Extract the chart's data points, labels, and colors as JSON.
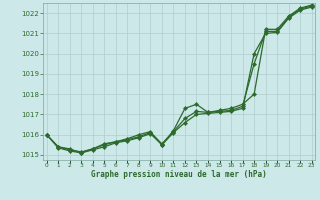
{
  "x": [
    0,
    1,
    2,
    3,
    4,
    5,
    6,
    7,
    8,
    9,
    10,
    11,
    12,
    13,
    14,
    15,
    16,
    17,
    18,
    19,
    20,
    21,
    22,
    23
  ],
  "line1": [
    1016.0,
    1015.4,
    1015.3,
    1015.1,
    1015.25,
    1015.4,
    1015.6,
    1015.7,
    1015.85,
    1016.05,
    1015.5,
    1016.1,
    1016.6,
    1017.0,
    1017.05,
    1017.1,
    1017.15,
    1017.3,
    1020.0,
    1021.0,
    1021.05,
    1021.75,
    1022.15,
    1022.3
  ],
  "line2": [
    1016.0,
    1015.4,
    1015.25,
    1015.15,
    1015.3,
    1015.5,
    1015.65,
    1015.75,
    1015.9,
    1016.1,
    1015.55,
    1016.15,
    1016.8,
    1017.15,
    1017.1,
    1017.15,
    1017.2,
    1017.4,
    1019.5,
    1021.1,
    1021.1,
    1021.8,
    1022.2,
    1022.35
  ],
  "line3": [
    1016.0,
    1015.35,
    1015.2,
    1015.1,
    1015.3,
    1015.55,
    1015.65,
    1015.8,
    1016.0,
    1016.15,
    1015.5,
    1016.2,
    1017.3,
    1017.5,
    1017.1,
    1017.2,
    1017.3,
    1017.5,
    1018.0,
    1021.2,
    1021.2,
    1021.85,
    1022.25,
    1022.4
  ],
  "line_color": "#2d6a2d",
  "marker": "D",
  "marker_size": 2.2,
  "background_color": "#cce8e8",
  "grid_color": "#b0cccc",
  "ylim": [
    1014.75,
    1022.5
  ],
  "xlim": [
    -0.3,
    23.3
  ],
  "yticks": [
    1015,
    1016,
    1017,
    1018,
    1019,
    1020,
    1021,
    1022
  ],
  "xtick_labels": [
    "0",
    "1",
    "2",
    "3",
    "4",
    "5",
    "6",
    "7",
    "8",
    "9",
    "10",
    "11",
    "12",
    "13",
    "14",
    "15",
    "16",
    "17",
    "18",
    "19",
    "20",
    "21",
    "22",
    "23"
  ],
  "xlabel": "Graphe pression niveau de la mer (hPa)"
}
